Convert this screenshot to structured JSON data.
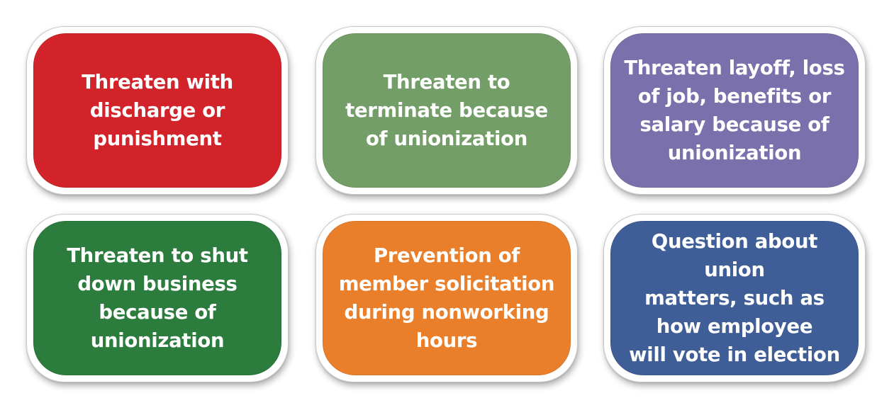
{
  "boxes": [
    {
      "lines": [
        "Threaten with",
        "discharge or",
        "punishment"
      ],
      "color": "#d2232a"
    },
    {
      "lines": [
        "Threaten to",
        "terminate because",
        "of unionization"
      ],
      "color": "#749e67"
    },
    {
      "lines": [
        "Threaten layoff, loss",
        "of job, benefits or",
        "salary because of",
        "unionization"
      ],
      "color": "#7a70ab"
    },
    {
      "lines": [
        "Threaten to shut",
        "down business",
        "because of",
        "unionization"
      ],
      "color": "#2b7c3d"
    },
    {
      "lines": [
        "Prevention of",
        "member solicitation",
        "during nonworking",
        "hours"
      ],
      "color": "#ea7f2b"
    },
    {
      "lines": [
        "Question about union",
        "matters, such as",
        "how employee",
        "will vote in election"
      ],
      "color": "#3f5e97"
    }
  ]
}
